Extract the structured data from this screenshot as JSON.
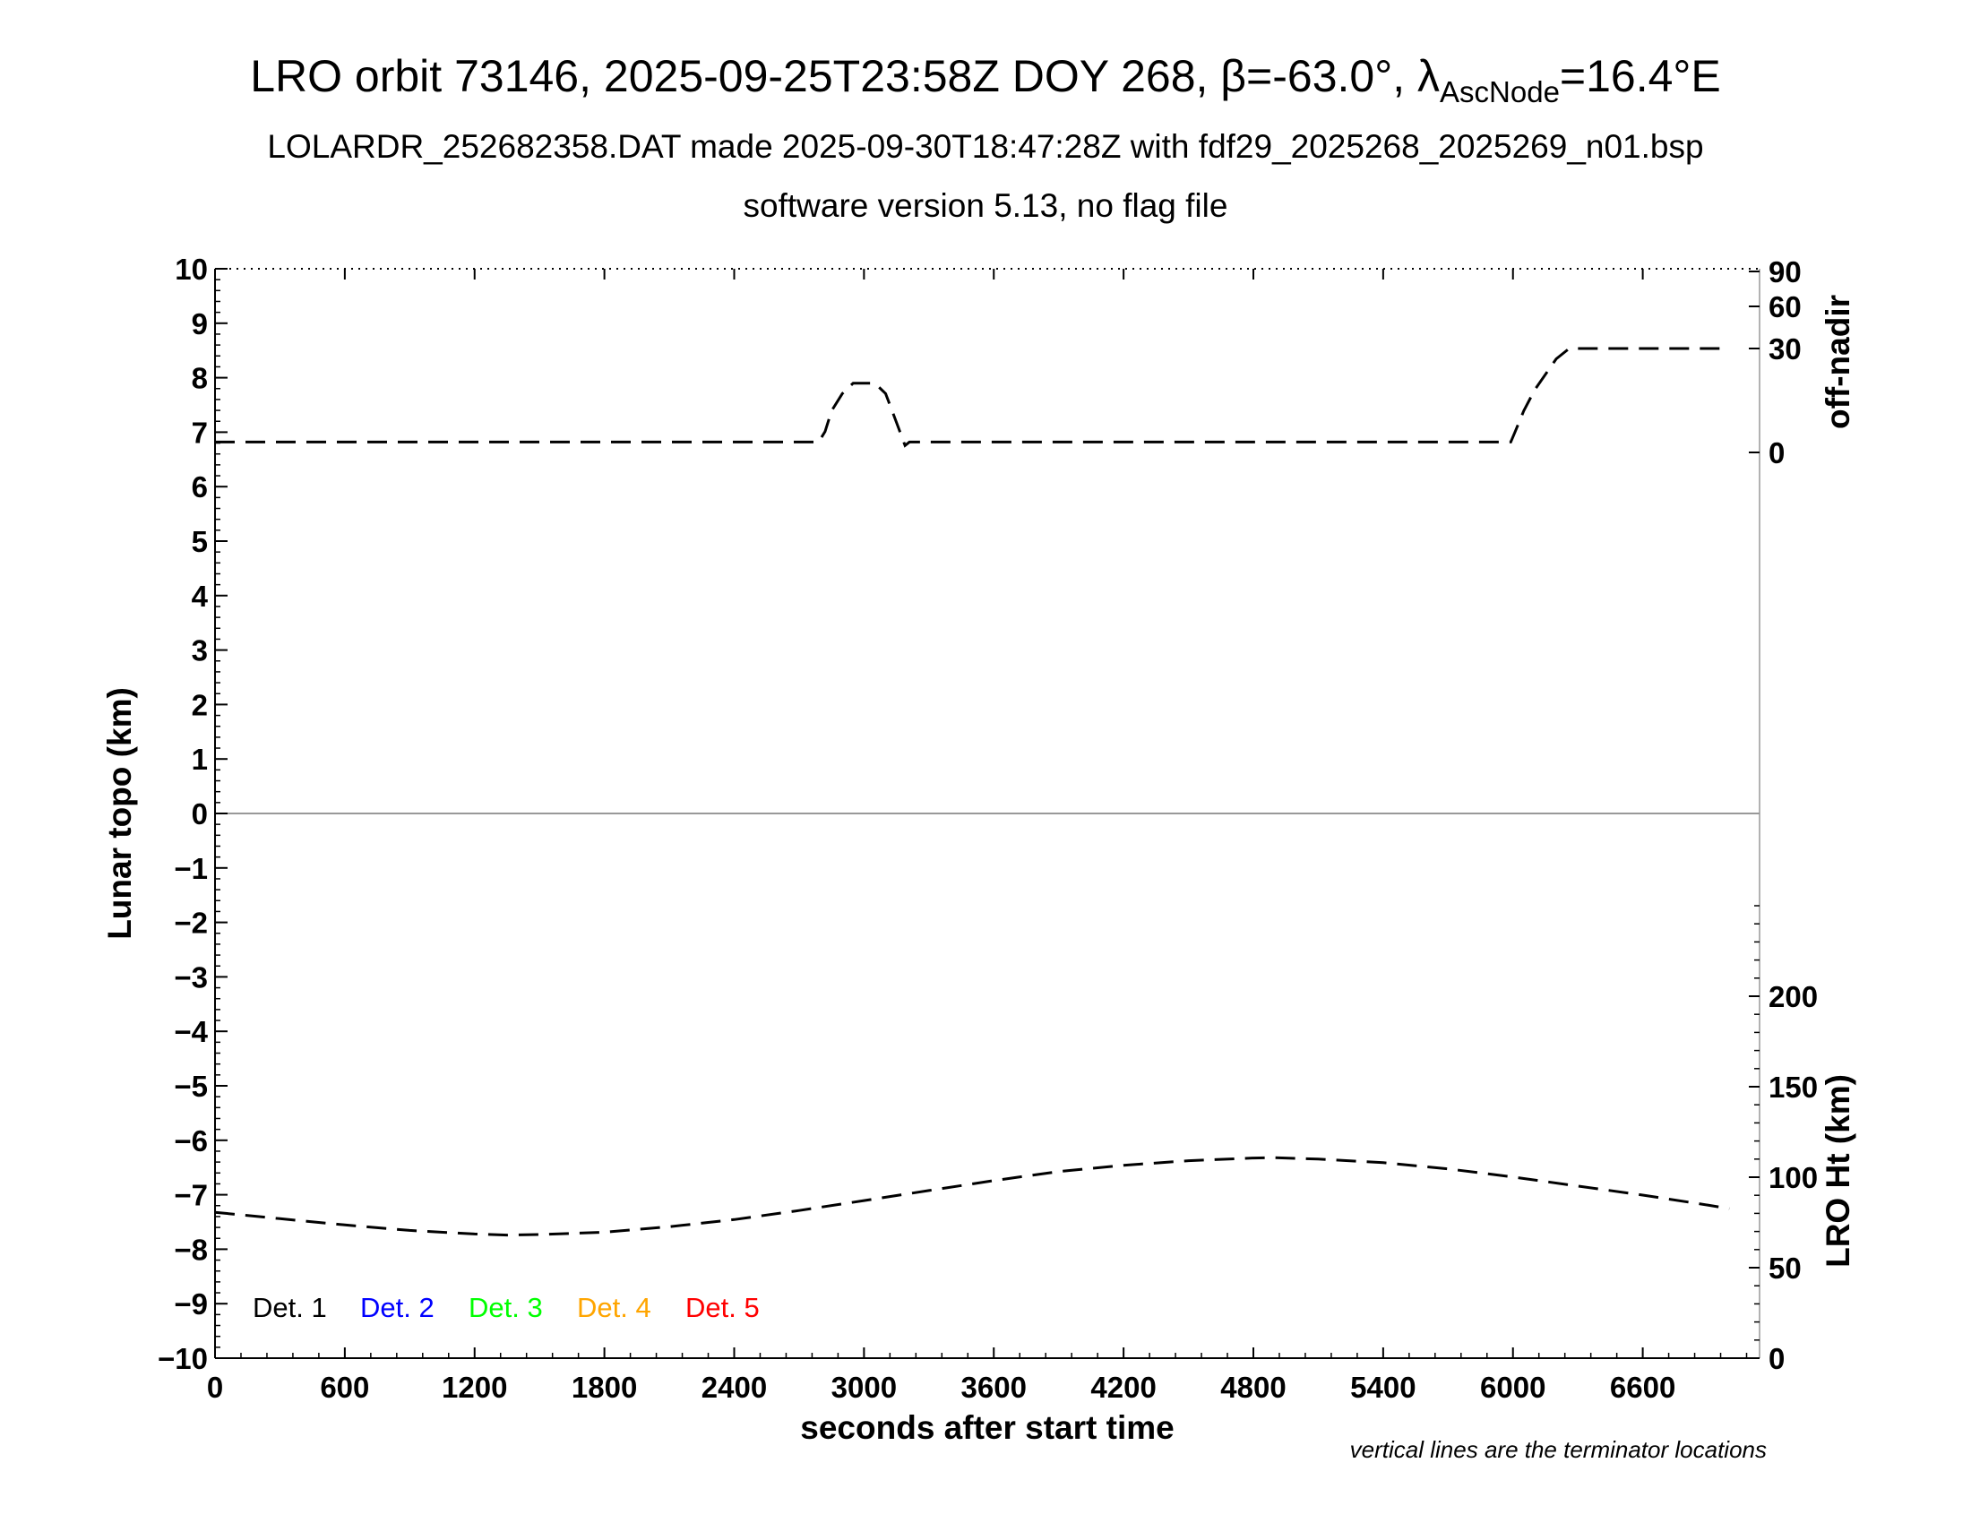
{
  "header": {
    "title_main": "LRO orbit 73146, 2025-09-25T23:58Z DOY 268, β=-63.0°, λ",
    "title_sub": "AscNode",
    "title_end": "=16.4°E",
    "subtitle_1": "LOLARDR_252682358.DAT made 2025-09-30T18:47:28Z with fdf29_2025268_2025269_n01.bsp",
    "subtitle_2": "software version 5.13, no flag file"
  },
  "footnote": "vertical lines are the terminator locations",
  "chart_data": {
    "type": "line",
    "grid": false,
    "xlabel": "seconds after start time",
    "xlim": [
      0,
      7140
    ],
    "x_ticks": [
      "0",
      "600",
      "1200",
      "1800",
      "2400",
      "3000",
      "3600",
      "4200",
      "4800",
      "5400",
      "6000",
      "6600"
    ],
    "x_tick_values": [
      0,
      600,
      1200,
      1800,
      2400,
      3000,
      3600,
      4200,
      4800,
      5400,
      6000,
      6600
    ],
    "ylabel_left": "Lunar topo (km)",
    "ylim_left": [
      -10,
      10
    ],
    "y_ticks_left": [
      "10",
      "9",
      "8",
      "7",
      "6",
      "5",
      "4",
      "3",
      "2",
      "1",
      "0",
      "−1",
      "−2",
      "−3",
      "−4",
      "−5",
      "−6",
      "−7",
      "−8",
      "−9",
      "−10"
    ],
    "y_tick_values_left": [
      10,
      9,
      8,
      7,
      6,
      5,
      4,
      3,
      2,
      1,
      0,
      -1,
      -2,
      -3,
      -4,
      -5,
      -6,
      -7,
      -8,
      -9,
      -10
    ],
    "ylabel_right_top": "off-nadir",
    "y_ticks_right_top": [
      "90",
      "60",
      "30",
      "0"
    ],
    "y_tick_values_right_top": [
      90,
      60,
      30,
      0
    ],
    "ylabel_right_bottom": "LRO Ht (km)",
    "ylim_right_bottom": [
      0,
      300
    ],
    "y_ticks_right_bottom": [
      "200",
      "150",
      "100",
      "50",
      "0"
    ],
    "y_tick_values_right_bottom": [
      200,
      150,
      100,
      50,
      0
    ],
    "legend": [
      {
        "label": "Det. 1",
        "color": "#000000"
      },
      {
        "label": "Det. 2",
        "color": "#0000ff"
      },
      {
        "label": "Det. 3",
        "color": "#00ff00"
      },
      {
        "label": "Det. 4",
        "color": "#ffa500"
      },
      {
        "label": "Det. 5",
        "color": "#ff0000"
      }
    ],
    "legend_placement": "bottom-left",
    "series": [
      {
        "axis": "off-nadir (deg)",
        "x": [
          0,
          1000,
          2000,
          2790,
          2820,
          2850,
          2900,
          2950,
          3050,
          3100,
          3130,
          3160,
          3190,
          3210,
          3250,
          4000,
          5000,
          5990,
          6010,
          6050,
          6100,
          6200,
          6260,
          6500,
          7000
        ],
        "values": [
          3,
          3,
          3,
          3,
          6,
          12,
          17,
          20,
          20,
          17,
          12,
          7,
          2,
          3,
          3,
          3,
          3,
          3,
          6,
          12,
          18,
          27,
          30,
          30,
          30
        ]
      },
      {
        "axis": "LRO Ht (km)",
        "x": [
          0,
          300,
          600,
          900,
          1200,
          1350,
          1500,
          1800,
          2100,
          2400,
          2700,
          3000,
          3300,
          3600,
          3900,
          4200,
          4500,
          4800,
          4900,
          5100,
          5400,
          5700,
          6000,
          6300,
          6600,
          6900,
          7000
        ],
        "values": [
          80.6,
          77.1,
          73.6,
          70.6,
          68.6,
          68.0,
          68.3,
          69.6,
          72.6,
          76.6,
          81.6,
          87.1,
          92.6,
          98.1,
          103.1,
          106.6,
          109.1,
          110.6,
          110.8,
          110.0,
          108.0,
          104.6,
          100.1,
          95.1,
          90.1,
          84.6,
          82.6
        ]
      }
    ]
  }
}
